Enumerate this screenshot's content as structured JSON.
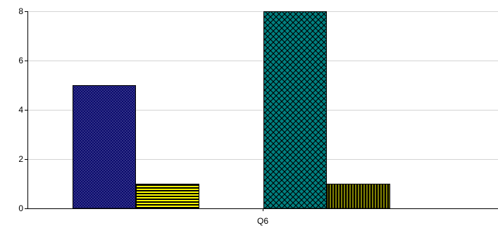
{
  "chart_data": {
    "type": "bar",
    "categories": [
      "Q6"
    ],
    "y_ticks": [
      0,
      2,
      4,
      6,
      8
    ],
    "ylim": [
      0,
      8
    ],
    "grid": "horizontal",
    "legend": "none",
    "title": "",
    "xlabel": "",
    "ylabel": "",
    "bars": [
      {
        "category": "Q6",
        "value": 5,
        "color": "#000066",
        "pattern": "dense-crosshatch"
      },
      {
        "category": "Q6",
        "value": 1,
        "color": "#ffff00",
        "pattern": "horizontal-stripes"
      },
      {
        "category": "Q6",
        "value": 8,
        "color": "#008080",
        "pattern": "diagonal-crosshatch"
      },
      {
        "category": "Q6",
        "value": 1,
        "color": "#808000",
        "pattern": "vertical-stripes"
      }
    ]
  }
}
